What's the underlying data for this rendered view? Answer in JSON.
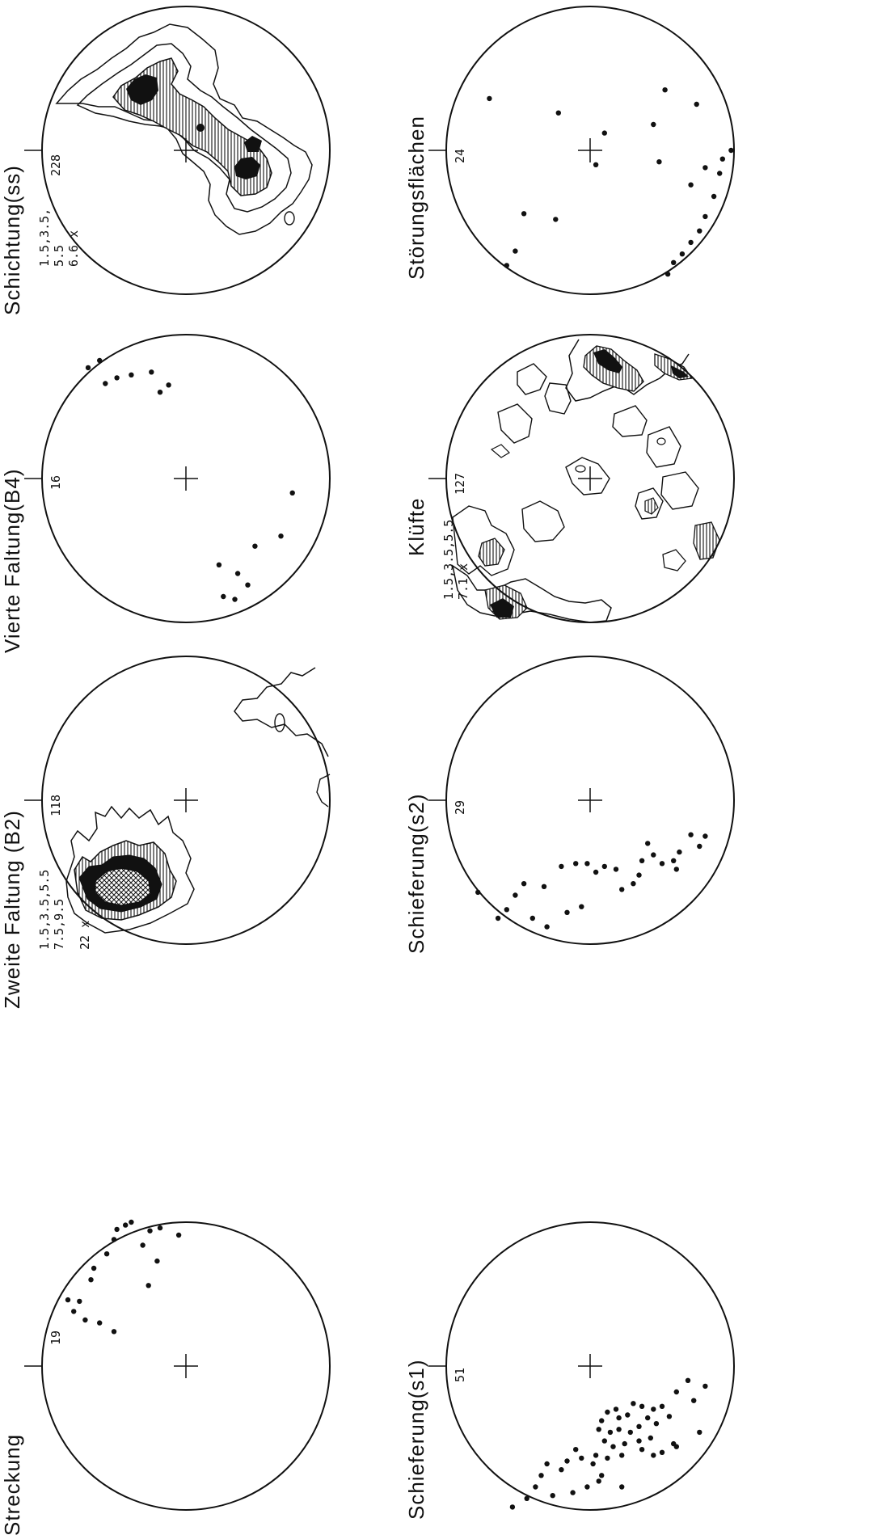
{
  "figure": {
    "orientation": "rotated-90-ccw",
    "ink_color": "#111111",
    "paper_color": "#ffffff"
  },
  "plots": [
    {
      "id": "streckung",
      "title": "Streckung",
      "count": "19",
      "contour_intervals": [],
      "kind": "points",
      "points": [
        [
          -0.5,
          -0.24
        ],
        [
          -0.6,
          -0.3
        ],
        [
          -0.7,
          -0.32
        ],
        [
          -0.78,
          -0.38
        ],
        [
          -0.74,
          -0.45
        ],
        [
          -0.82,
          -0.46
        ],
        [
          -0.66,
          -0.6
        ],
        [
          -0.64,
          -0.68
        ],
        [
          -0.55,
          -0.78
        ],
        [
          -0.5,
          -0.88
        ],
        [
          -0.48,
          -0.95
        ],
        [
          -0.42,
          -0.98
        ],
        [
          -0.38,
          -1.0
        ],
        [
          -0.3,
          -0.84
        ],
        [
          -0.2,
          -0.73
        ],
        [
          -0.26,
          -0.56
        ],
        [
          -0.25,
          -0.94
        ],
        [
          -0.18,
          -0.96
        ],
        [
          -0.05,
          -0.91
        ]
      ]
    },
    {
      "id": "zweite-faltung",
      "title": "Zweite Faltung (B2)",
      "count": "118",
      "contour_intervals": [
        "1.5,3.5,5.5",
        "7.5,9.5",
        "22 x"
      ],
      "kind": "contours"
    },
    {
      "id": "vierte-faltung",
      "title": "Vierte Faltung(B4)",
      "count": "16",
      "contour_intervals": [],
      "kind": "points",
      "points": [
        [
          0.74,
          0.1
        ],
        [
          0.66,
          0.4
        ],
        [
          0.48,
          0.47
        ],
        [
          0.43,
          0.74
        ],
        [
          0.36,
          0.66
        ],
        [
          0.34,
          0.84
        ],
        [
          0.26,
          0.82
        ],
        [
          0.23,
          0.6
        ],
        [
          -0.12,
          -0.65
        ],
        [
          -0.18,
          -0.6
        ],
        [
          -0.24,
          -0.74
        ],
        [
          -0.38,
          -0.72
        ],
        [
          -0.48,
          -0.7
        ],
        [
          -0.56,
          -0.66
        ],
        [
          -0.6,
          -0.82
        ],
        [
          -0.68,
          -0.77
        ]
      ]
    },
    {
      "id": "schichtung",
      "title": "Schichtung(ss)",
      "count": "228",
      "contour_intervals": [
        "1.5,3.5,",
        "5.5",
        "6.6 x"
      ],
      "kind": "contours"
    },
    {
      "id": "schieferung-s1",
      "title": "Schieferung(s1)",
      "count": "51",
      "contour_intervals": [],
      "kind": "points",
      "points": [
        [
          0.72,
          0.24
        ],
        [
          0.76,
          0.46
        ],
        [
          0.55,
          0.35
        ],
        [
          0.5,
          0.28
        ],
        [
          0.44,
          0.3
        ],
        [
          0.4,
          0.36
        ],
        [
          0.36,
          0.28
        ],
        [
          0.3,
          0.26
        ],
        [
          0.26,
          0.34
        ],
        [
          0.2,
          0.36
        ],
        [
          0.18,
          0.3
        ],
        [
          0.12,
          0.32
        ],
        [
          0.08,
          0.38
        ],
        [
          0.46,
          0.4
        ],
        [
          0.34,
          0.42
        ],
        [
          0.28,
          0.46
        ],
        [
          0.2,
          0.44
        ],
        [
          0.14,
          0.46
        ],
        [
          0.06,
          0.44
        ],
        [
          0.42,
          0.5
        ],
        [
          0.34,
          0.52
        ],
        [
          0.24,
          0.54
        ],
        [
          0.16,
          0.56
        ],
        [
          0.1,
          0.52
        ],
        [
          0.6,
          0.56
        ],
        [
          0.58,
          0.54
        ],
        [
          0.5,
          0.6
        ],
        [
          0.44,
          0.62
        ],
        [
          0.36,
          0.58
        ],
        [
          0.22,
          0.62
        ],
        [
          0.12,
          0.64
        ],
        [
          0.04,
          0.62
        ],
        [
          0.02,
          0.68
        ],
        [
          -0.06,
          0.64
        ],
        [
          -0.1,
          0.58
        ],
        [
          -0.16,
          0.66
        ],
        [
          -0.2,
          0.72
        ],
        [
          -0.3,
          0.68
        ],
        [
          -0.34,
          0.76
        ],
        [
          -0.38,
          0.84
        ],
        [
          -0.44,
          0.92
        ],
        [
          0.08,
          0.76
        ],
        [
          0.06,
          0.8
        ],
        [
          -0.02,
          0.84
        ],
        [
          -0.12,
          0.88
        ],
        [
          -0.26,
          0.9
        ],
        [
          0.22,
          0.84
        ],
        [
          0.8,
          0.14
        ],
        [
          0.6,
          0.18
        ],
        [
          -0.54,
          0.98
        ],
        [
          0.68,
          0.1
        ]
      ]
    },
    {
      "id": "schieferung-s2",
      "title": "Schieferung(s2)",
      "count": "29",
      "contour_intervals": [],
      "kind": "points",
      "points": [
        [
          0.76,
          0.32
        ],
        [
          0.8,
          0.25
        ],
        [
          0.7,
          0.24
        ],
        [
          0.62,
          0.36
        ],
        [
          0.58,
          0.42
        ],
        [
          0.5,
          0.44
        ],
        [
          0.44,
          0.38
        ],
        [
          0.4,
          0.3
        ],
        [
          0.36,
          0.42
        ],
        [
          0.34,
          0.52
        ],
        [
          0.3,
          0.58
        ],
        [
          0.22,
          0.62
        ],
        [
          0.18,
          0.48
        ],
        [
          0.1,
          0.46
        ],
        [
          0.04,
          0.5
        ],
        [
          -0.02,
          0.44
        ],
        [
          -0.1,
          0.44
        ],
        [
          -0.2,
          0.46
        ],
        [
          -0.32,
          0.6
        ],
        [
          -0.46,
          0.58
        ],
        [
          -0.52,
          0.66
        ],
        [
          -0.58,
          0.76
        ],
        [
          -0.3,
          0.88
        ],
        [
          -0.4,
          0.82
        ],
        [
          -0.16,
          0.78
        ],
        [
          -0.06,
          0.74
        ],
        [
          0.6,
          0.48
        ],
        [
          -0.78,
          0.64
        ],
        [
          -0.64,
          0.82
        ]
      ]
    },
    {
      "id": "kluefte",
      "title": "Klüfte",
      "count": "127",
      "contour_intervals": [
        "1.5,3.5,5.5",
        "7.1 x"
      ],
      "kind": "contours"
    },
    {
      "id": "stoerungsflaechen",
      "title": "Störungsflächen",
      "count": "24",
      "contour_intervals": [],
      "kind": "points",
      "points": [
        [
          0.98,
          0.0
        ],
        [
          0.9,
          0.16
        ],
        [
          0.86,
          0.32
        ],
        [
          0.8,
          0.46
        ],
        [
          0.76,
          0.56
        ],
        [
          0.7,
          0.64
        ],
        [
          0.64,
          0.72
        ],
        [
          0.58,
          0.78
        ],
        [
          0.54,
          0.86
        ],
        [
          0.92,
          0.06
        ],
        [
          0.8,
          0.12
        ],
        [
          0.7,
          0.24
        ],
        [
          0.48,
          0.08
        ],
        [
          0.74,
          -0.32
        ],
        [
          0.52,
          -0.42
        ],
        [
          0.44,
          -0.18
        ],
        [
          0.1,
          -0.12
        ],
        [
          0.04,
          0.1
        ],
        [
          -0.22,
          -0.26
        ],
        [
          -0.24,
          0.48
        ],
        [
          -0.46,
          0.44
        ],
        [
          -0.52,
          0.7
        ],
        [
          -0.58,
          0.8
        ],
        [
          -0.7,
          -0.36
        ]
      ]
    }
  ]
}
